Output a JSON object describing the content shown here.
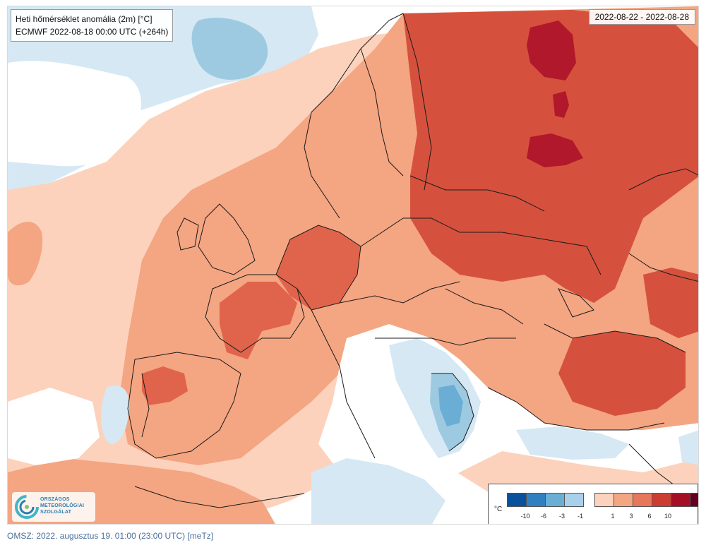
{
  "header": {
    "title": "Heti hőmérséklet anomália (2m) [°C]",
    "model_run": "ECMWF 2022-08-18 00:00 UTC (+264h)"
  },
  "period": "2022-08-22 - 2022-08-28",
  "logo": {
    "line1": "ORSZÁGOS",
    "line2": "METEOROLÓGIAI",
    "line3": "SZOLGÁLAT"
  },
  "legend": {
    "unit": "°C",
    "cold_colors": [
      "#08519c",
      "#2f7fc1",
      "#6aaed6",
      "#a9d0ea"
    ],
    "warm_colors": [
      "#fcd2bc",
      "#f4a582",
      "#e6775a",
      "#cc3d31",
      "#a50f25",
      "#67001f"
    ],
    "cold_ticks": [
      "-10",
      "-6",
      "-3",
      "-1"
    ],
    "warm_ticks": [
      "1",
      "3",
      "6",
      "10"
    ]
  },
  "colors": {
    "near_zero": "#ffffff",
    "light_blue": "#d5e8f4",
    "mid_blue": "#9ecae1",
    "blue": "#6aaed6",
    "light_orange": "#fcd2bc",
    "orange": "#f4a582",
    "red_orange": "#e0644c",
    "red": "#d5513e",
    "dark_red": "#b2182b",
    "border": "#1a1a1a"
  },
  "footer": "OMSZ: 2022. augusztus 19. 01:00 (23:00  UTC)  [meTz]"
}
